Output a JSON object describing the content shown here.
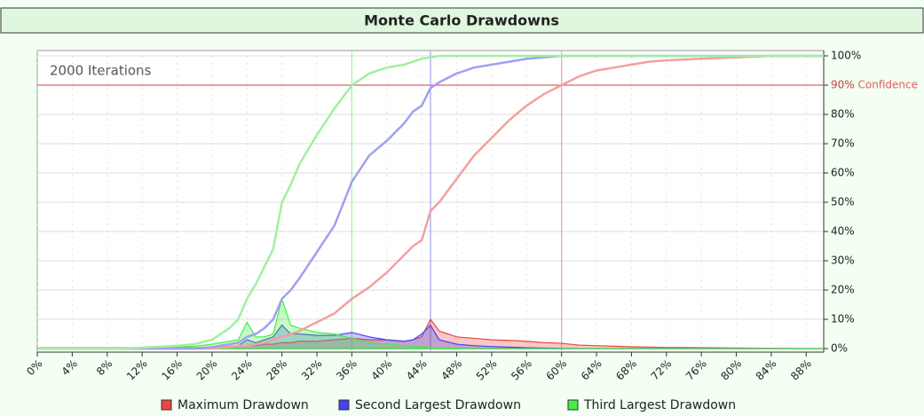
{
  "chart_data": {
    "type": "line",
    "title": "Monte Carlo Drawdowns",
    "annotation": "2000 Iterations",
    "x": [
      0,
      10,
      16,
      18,
      20,
      21,
      22,
      23,
      24,
      25,
      26,
      27,
      28,
      29,
      30,
      32,
      34,
      36,
      38,
      40,
      42,
      43,
      44,
      45,
      46,
      48,
      50,
      52,
      54,
      56,
      58,
      60,
      62,
      64,
      66,
      68,
      70,
      72,
      76,
      80,
      84,
      88,
      90
    ],
    "series": [
      {
        "name": "Maximum Drawdown",
        "color": "#ee4444",
        "line_color": "#f4a0a0",
        "confidence_x": 60,
        "values": [
          0,
          0,
          0,
          0,
          0,
          0.5,
          0.5,
          1,
          1,
          1.5,
          2,
          3,
          4,
          5,
          6,
          9,
          12,
          17,
          21,
          26,
          32,
          35,
          37,
          47,
          50,
          58,
          66,
          72,
          78,
          83,
          87,
          90,
          93,
          95,
          96,
          97,
          98,
          98.5,
          99,
          99.5,
          100,
          100,
          100
        ],
        "density": [
          0.3,
          0.3,
          0.3,
          0.3,
          0.5,
          0.5,
          0.5,
          0.8,
          1,
          1,
          1.5,
          1.5,
          2,
          2,
          2.5,
          2.5,
          3,
          3.5,
          3,
          3,
          2.5,
          3,
          4,
          10,
          6,
          4,
          3.5,
          3,
          2.8,
          2.5,
          2,
          1.8,
          1.2,
          1,
          0.8,
          0.6,
          0.5,
          0.4,
          0.3,
          0.2,
          0.1,
          0,
          0
        ]
      },
      {
        "name": "Second Largest Drawdown",
        "color": "#4444ee",
        "line_color": "#a0a0f0",
        "confidence_x": 45,
        "values": [
          0,
          0,
          0,
          0,
          0.5,
          1,
          1.5,
          2,
          4,
          5,
          7,
          10,
          17,
          20,
          24,
          33,
          42,
          57,
          66,
          71,
          77,
          81,
          83,
          89,
          91,
          94,
          96,
          97,
          98,
          99,
          99.5,
          100,
          100,
          100,
          100,
          100,
          100,
          100,
          100,
          100,
          100,
          100,
          100
        ],
        "density": [
          0,
          0,
          0,
          0,
          0.3,
          0.5,
          0.8,
          1,
          3,
          2,
          3,
          4,
          8,
          5,
          5,
          4.5,
          4.5,
          5.5,
          4,
          3,
          2.5,
          3,
          5,
          8,
          3,
          1.5,
          1,
          0.7,
          0.5,
          0.3,
          0.2,
          0.1,
          0,
          0,
          0,
          0,
          0,
          0,
          0,
          0,
          0,
          0,
          0
        ]
      },
      {
        "name": "Third Largest Drawdown",
        "color": "#44ee44",
        "line_color": "#a0f0a0",
        "confidence_x": 36,
        "values": [
          0,
          0,
          1,
          1.5,
          3,
          5,
          7,
          10,
          17,
          22,
          28,
          34,
          50,
          56,
          63,
          73,
          82,
          90,
          94,
          96,
          97,
          98,
          99,
          99.5,
          100,
          100,
          100,
          100,
          100,
          100,
          100,
          100,
          100,
          100,
          100,
          100,
          100,
          100,
          100,
          100,
          100,
          100,
          100
        ],
        "density": [
          0,
          0.1,
          0.5,
          0.8,
          1.5,
          2,
          2.5,
          3,
          9,
          4,
          4,
          5,
          17,
          8,
          7,
          5.5,
          5,
          3.5,
          2,
          1.5,
          1,
          0.8,
          0.6,
          0.5,
          0.3,
          0.1,
          0,
          0,
          0,
          0,
          0,
          0,
          0,
          0,
          0,
          0,
          0,
          0,
          0,
          0,
          0,
          0,
          0
        ]
      }
    ],
    "confidence": {
      "value": 90,
      "label": "90% Confidence",
      "color": "#e06060"
    },
    "xlim": [
      0,
      90
    ],
    "ylim": [
      0,
      100
    ],
    "xticks": [
      {
        "value": 0,
        "label": "0%"
      },
      {
        "value": 4,
        "label": "4%"
      },
      {
        "value": 8,
        "label": "8%"
      },
      {
        "value": 12,
        "label": "12%"
      },
      {
        "value": 16,
        "label": "16%"
      },
      {
        "value": 20,
        "label": "20%"
      },
      {
        "value": 24,
        "label": "24%"
      },
      {
        "value": 28,
        "label": "28%"
      },
      {
        "value": 32,
        "label": "32%"
      },
      {
        "value": 36,
        "label": "36%"
      },
      {
        "value": 40,
        "label": "40%"
      },
      {
        "value": 44,
        "label": "44%"
      },
      {
        "value": 48,
        "label": "48%"
      },
      {
        "value": 52,
        "label": "52%"
      },
      {
        "value": 56,
        "label": "56%"
      },
      {
        "value": 60,
        "label": "60%"
      },
      {
        "value": 64,
        "label": "64%"
      },
      {
        "value": 68,
        "label": "68%"
      },
      {
        "value": 72,
        "label": "72%"
      },
      {
        "value": 76,
        "label": "76%"
      },
      {
        "value": 80,
        "label": "80%"
      },
      {
        "value": 84,
        "label": "84%"
      },
      {
        "value": 88,
        "label": "88%"
      }
    ],
    "yticks": [
      {
        "value": 0,
        "label": "0%"
      },
      {
        "value": 10,
        "label": "10%"
      },
      {
        "value": 20,
        "label": "20%"
      },
      {
        "value": 30,
        "label": "30%"
      },
      {
        "value": 40,
        "label": "40%"
      },
      {
        "value": 50,
        "label": "50%"
      },
      {
        "value": 60,
        "label": "60%"
      },
      {
        "value": 70,
        "label": "70%"
      },
      {
        "value": 80,
        "label": "80%"
      },
      {
        "value": 90,
        "label": "90%"
      },
      {
        "value": 100,
        "label": "100%"
      }
    ],
    "grid": true,
    "legend": "bottom"
  }
}
